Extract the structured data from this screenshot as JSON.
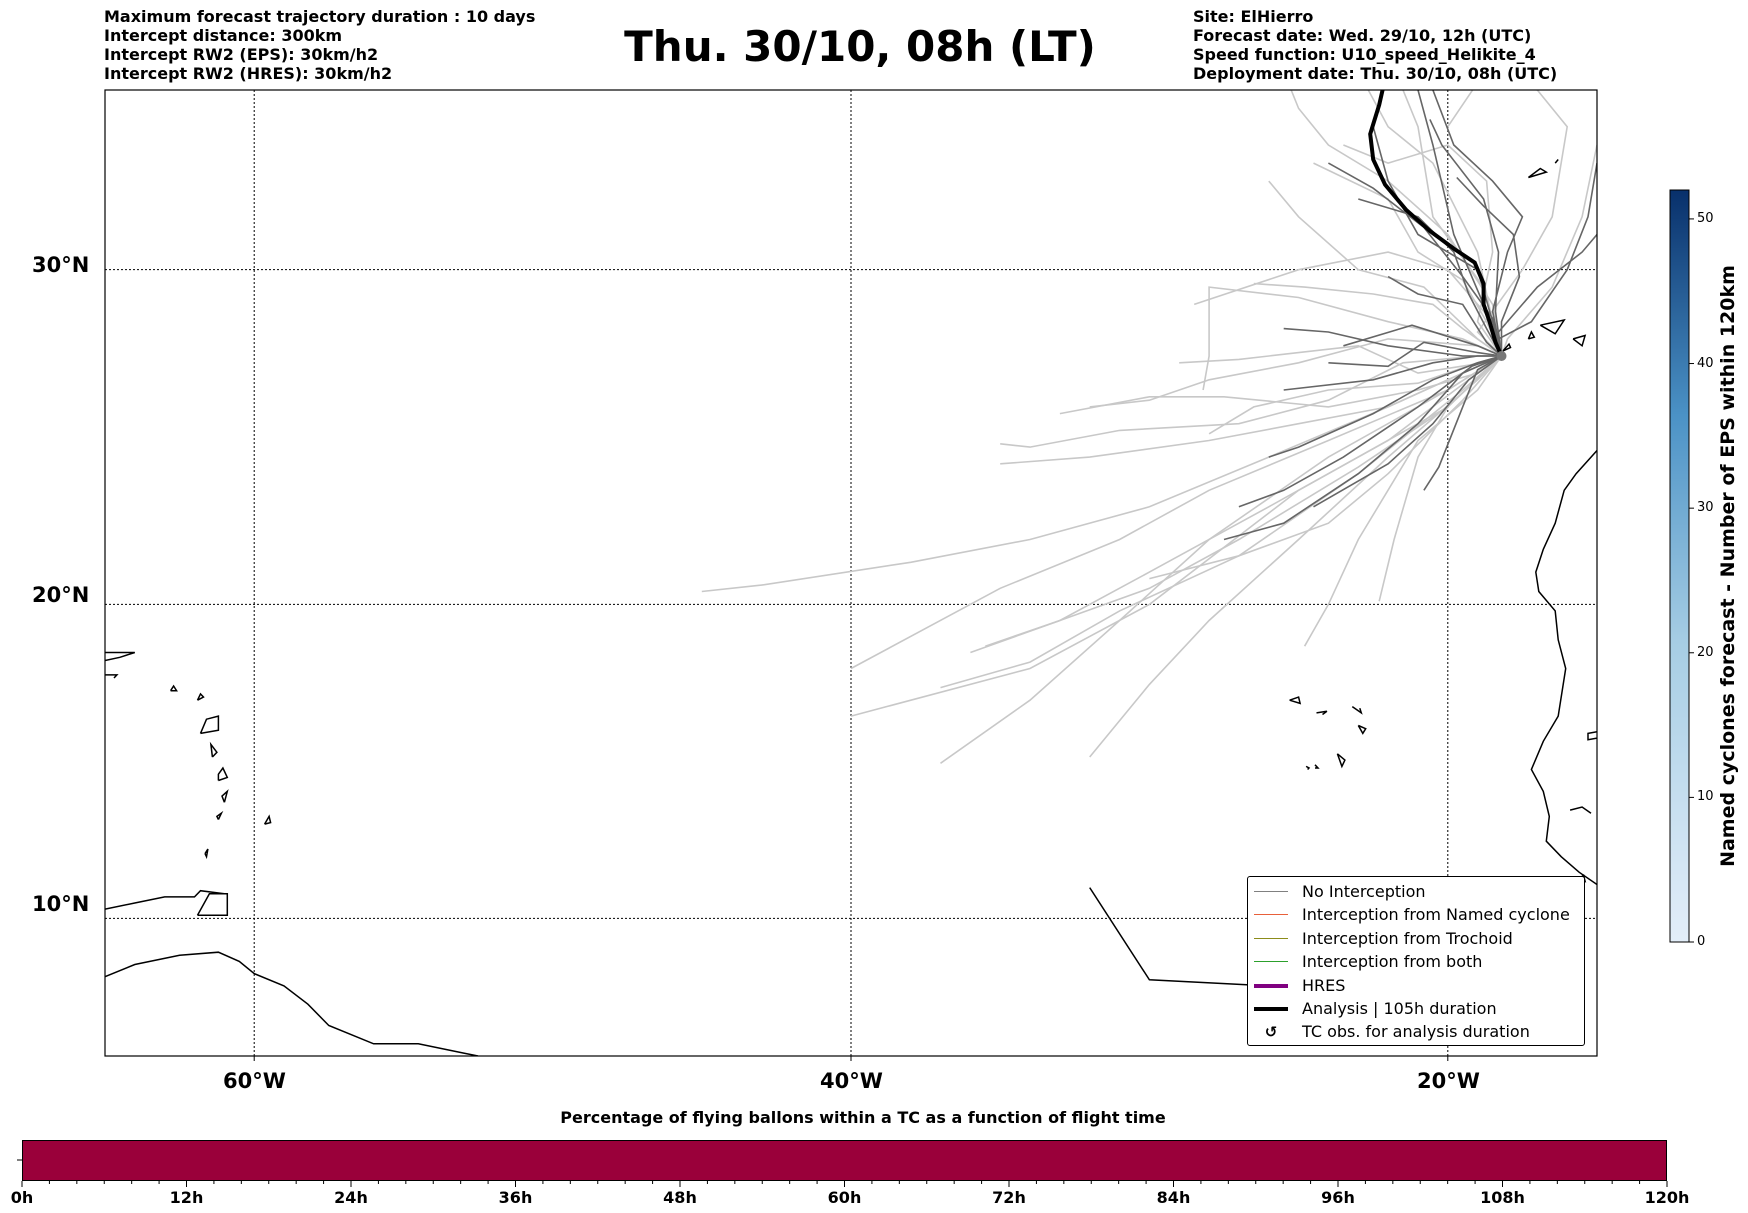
{
  "header": {
    "left": [
      "Maximum forecast trajectory duration : 10 days",
      "Intercept distance: 300km",
      "Intercept RW2 (EPS):  30km/h2",
      "Intercept RW2 (HRES): 30km/h2"
    ],
    "title": "Thu. 30/10, 08h (LT)",
    "right": [
      "Site: ElHierro",
      "Forecast date: Wed. 29/10, 12h (UTC)",
      "Speed function: U10_speed_Helikite_4",
      "Deployment date: Thu. 30/10, 08h (UTC)"
    ]
  },
  "map": {
    "extent": {
      "lon_min": -65,
      "lon_max": -15,
      "lat_min": 5.5,
      "lat_max": 35
    },
    "lat_ticks": [
      {
        "lat": 30,
        "label": "30°N"
      },
      {
        "lat": 20,
        "label": "20°N"
      },
      {
        "lat": 10,
        "label": "10°N"
      }
    ],
    "lon_ticks": [
      {
        "lon": -60,
        "label": "60°W"
      },
      {
        "lon": -40,
        "label": "40°W"
      },
      {
        "lon": -20,
        "label": "20°W"
      }
    ],
    "launch_site": {
      "lon": -18.2,
      "lat": 27.5
    },
    "colors": {
      "no_interception_dark": "#666666",
      "no_interception_light": "#c8c8c8",
      "analysis": "#000000",
      "coast": "#000000"
    }
  },
  "legend": {
    "items": [
      {
        "label": "No Interception",
        "color": "#808080",
        "style": "thin"
      },
      {
        "label": "Interception from Named cyclone",
        "color": "#e8603a",
        "style": "thin"
      },
      {
        "label": "Interception from Trochoid",
        "color": "#8c8c1a",
        "style": "thin"
      },
      {
        "label": "Interception from both",
        "color": "#2ca02c",
        "style": "thin"
      },
      {
        "label": "HRES",
        "color": "#800080",
        "style": "thick"
      },
      {
        "label": "Analysis | 105h duration",
        "color": "#000000",
        "style": "thick"
      },
      {
        "label": "TC obs. for analysis duration",
        "color": "#000000",
        "style": "symbol",
        "symbol": "↺"
      }
    ]
  },
  "colorbar": {
    "title": "Named cyclones forecast - Number of EPS within 120km",
    "min": 0,
    "max": 52,
    "ticks": [
      0,
      10,
      20,
      30,
      40,
      50
    ],
    "color_low": "#e3eef9",
    "color_high": "#08306b"
  },
  "percentage_bar": {
    "title": "Percentage of flying ballons within a TC as a function of flight time",
    "color": "#9a003a",
    "hour_labels": [
      "0h",
      "12h",
      "24h",
      "36h",
      "48h",
      "60h",
      "72h",
      "84h",
      "96h",
      "108h",
      "120h"
    ]
  }
}
